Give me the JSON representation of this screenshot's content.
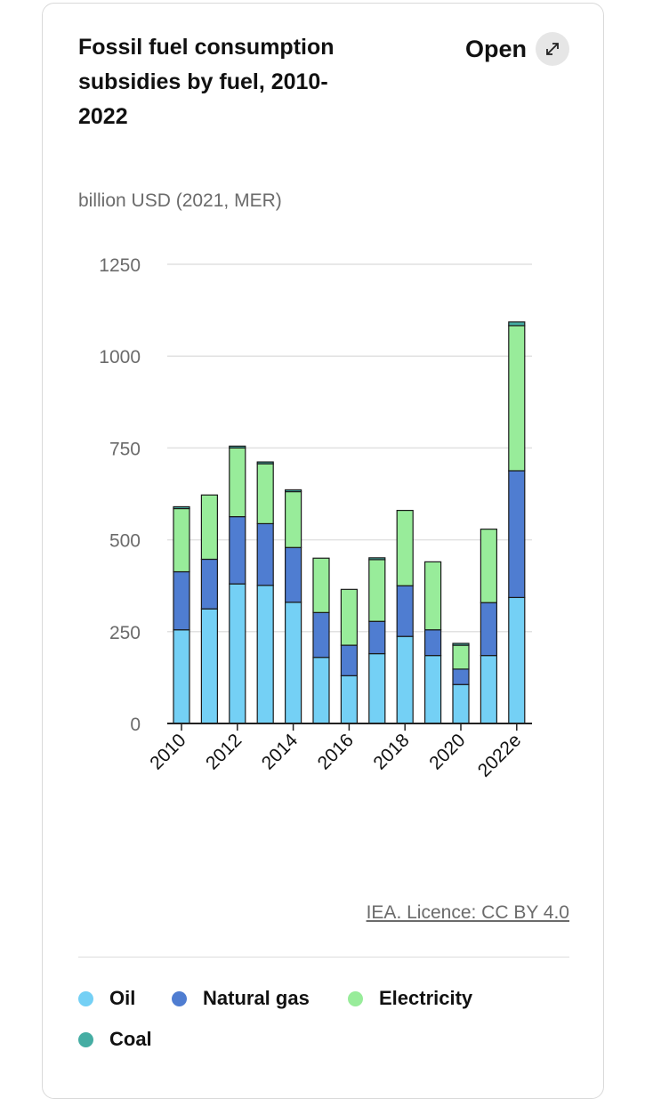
{
  "header": {
    "title": "Fossil fuel consumption subsidies by fuel, 2010-2022",
    "open_label": "Open",
    "expand_icon": "expand-arrows-icon"
  },
  "unit_label": "billion USD (2021, MER)",
  "credit": "IEA. Licence: CC BY 4.0",
  "colors": {
    "Oil": "#74d0f5",
    "Natural gas": "#4f7dd1",
    "Electricity": "#98ec9a",
    "Coal": "#45ada3"
  },
  "legend": [
    {
      "label": "Oil",
      "color": "#74d0f5"
    },
    {
      "label": "Natural gas",
      "color": "#4f7dd1"
    },
    {
      "label": "Electricity",
      "color": "#98ec9a"
    },
    {
      "label": "Coal",
      "color": "#45ada3"
    }
  ],
  "chart_data": {
    "type": "bar",
    "stacked": true,
    "categories": [
      "2010",
      "2011",
      "2012",
      "2013",
      "2014",
      "2015",
      "2016",
      "2017",
      "2018",
      "2019",
      "2020",
      "2021",
      "2022e"
    ],
    "x_tick_labels": [
      "2010",
      "2012",
      "2014",
      "2016",
      "2018",
      "2020",
      "2022e"
    ],
    "ylim": [
      0,
      1250
    ],
    "yticks": [
      0,
      250,
      500,
      750,
      1000,
      1250
    ],
    "grid": true,
    "legend_position": "bottom",
    "series": [
      {
        "name": "Oil",
        "values": [
          255,
          312,
          380,
          376,
          330,
          180,
          130,
          190,
          237,
          185,
          106,
          185,
          343
        ]
      },
      {
        "name": "Natural gas",
        "values": [
          158,
          135,
          183,
          168,
          149,
          122,
          83,
          88,
          138,
          70,
          42,
          144,
          345
        ]
      },
      {
        "name": "Electricity",
        "values": [
          172,
          175,
          187,
          163,
          152,
          148,
          152,
          168,
          205,
          185,
          65,
          200,
          395
        ]
      },
      {
        "name": "Coal",
        "values": [
          5,
          0,
          5,
          5,
          5,
          0,
          0,
          5,
          0,
          0,
          5,
          0,
          10
        ]
      }
    ]
  }
}
